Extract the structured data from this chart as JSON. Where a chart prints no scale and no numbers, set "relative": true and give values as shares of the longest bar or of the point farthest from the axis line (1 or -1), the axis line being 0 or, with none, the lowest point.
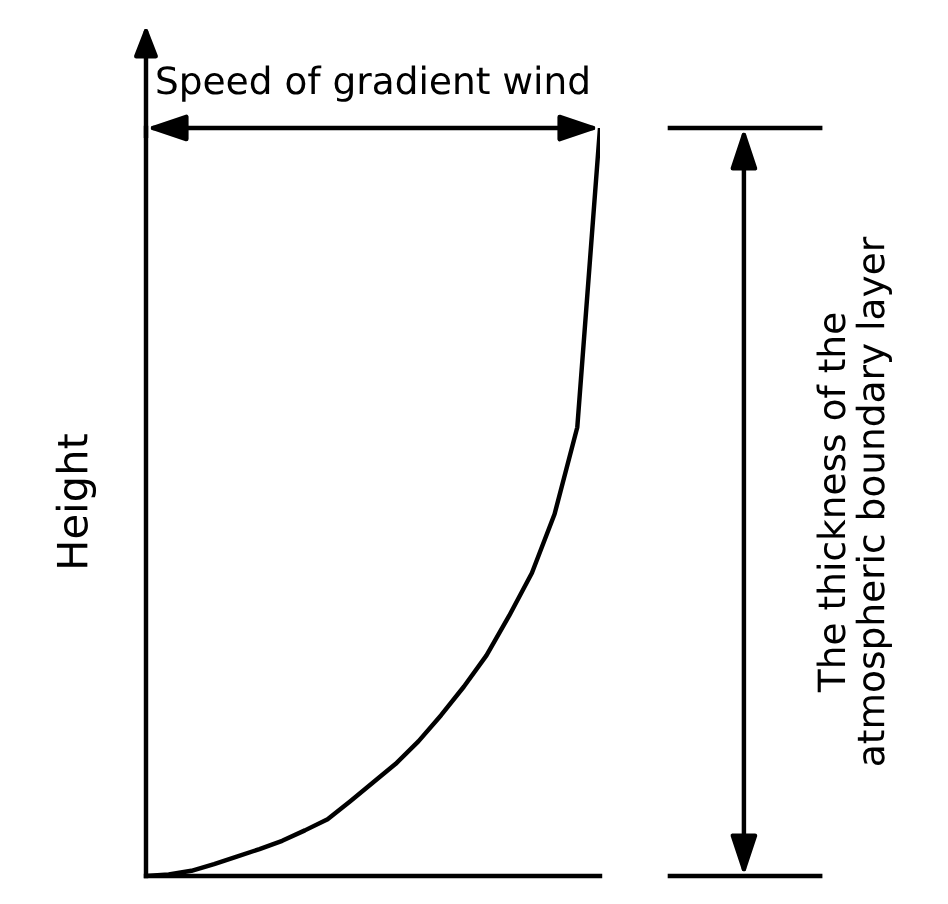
{
  "chart_data": {
    "type": "line",
    "relative": true,
    "ylabel": "Height",
    "legend": false,
    "marker": "none",
    "line_style": "solid",
    "annotations": [
      "Speed of gradient wind",
      "The thickness of the\natmospheric boundary layer"
    ],
    "categories": [
      null,
      null,
      null,
      null,
      null,
      null,
      null,
      null,
      null,
      null,
      null,
      null,
      null,
      null,
      null,
      null,
      null,
      null,
      null,
      null,
      null
    ],
    "series": [
      {
        "color": "#000000",
        "values": [
          0,
          0.002,
          0.007,
          0.016,
          0.026,
          0.036,
          0.047,
          0.061,
          0.076,
          0.1,
          0.125,
          0.15,
          0.18,
          0.215,
          0.253,
          0.295,
          0.348,
          0.405,
          0.484,
          0.6,
          1
        ]
      }
    ]
  }
}
